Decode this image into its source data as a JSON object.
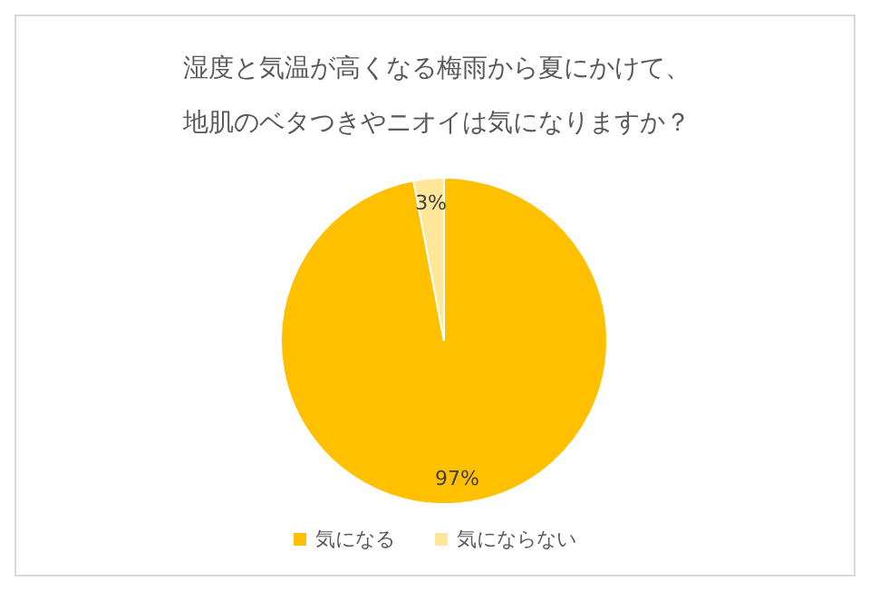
{
  "chart_data": {
    "type": "pie",
    "title": "湿度と気温が高くなる梅雨から夏にかけて、地肌のベタつきやニオイは気になりますか？",
    "categories": [
      "気になる",
      "気にならない"
    ],
    "values": [
      97,
      3
    ],
    "colors": [
      "#ffc000",
      "#ffe699"
    ],
    "value_labels": [
      "97%",
      "3%"
    ],
    "legend": "bottom"
  }
}
